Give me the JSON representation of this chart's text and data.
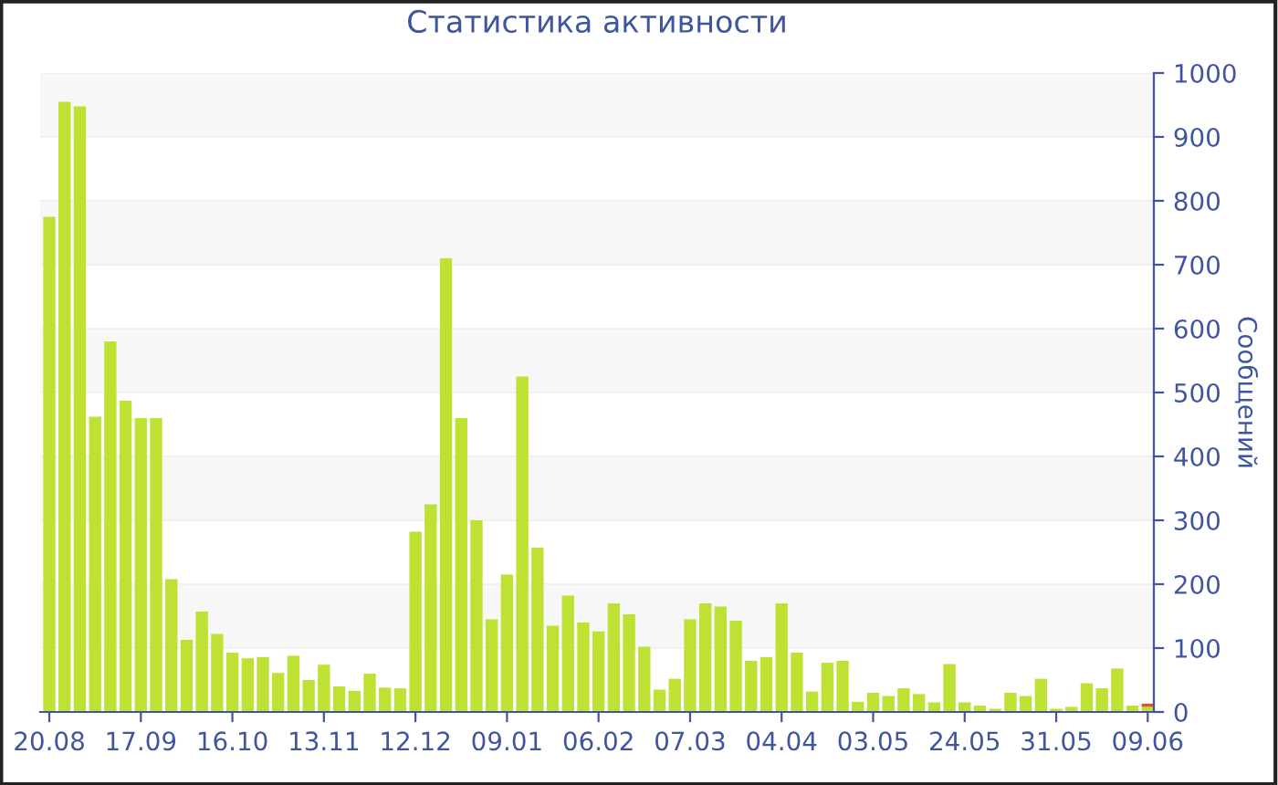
{
  "chart_data": {
    "type": "bar",
    "title": "Статистика активности",
    "ylabel": "Сообщений",
    "categories": [
      "20.08",
      null,
      null,
      null,
      null,
      null,
      "17.09",
      null,
      null,
      null,
      null,
      null,
      "16.10",
      null,
      null,
      null,
      null,
      null,
      "13.11",
      null,
      null,
      null,
      null,
      null,
      "12.12",
      null,
      null,
      null,
      null,
      null,
      "09.01",
      null,
      null,
      null,
      null,
      null,
      "06.02",
      null,
      null,
      null,
      null,
      null,
      "07.03",
      null,
      null,
      null,
      null,
      null,
      "04.04",
      null,
      null,
      null,
      null,
      null,
      "03.05",
      null,
      null,
      null,
      null,
      null,
      "24.05",
      null,
      null,
      null,
      null,
      null,
      "31.05",
      null,
      null,
      null,
      null,
      null,
      "09.06"
    ],
    "stacked": true,
    "series": [
      {
        "color": "#bde233",
        "values": [
          775,
          955,
          948,
          462,
          580,
          487,
          460,
          460,
          208,
          113,
          157,
          122,
          93,
          84,
          86,
          61,
          88,
          50,
          74,
          40,
          33,
          60,
          38,
          37,
          282,
          325,
          710,
          460,
          300,
          145,
          215,
          525,
          257,
          135,
          182,
          140,
          126,
          170,
          153,
          102,
          35,
          52,
          145,
          170,
          165,
          143,
          80,
          86,
          170,
          93,
          32,
          77,
          80,
          16,
          30,
          25,
          37,
          28,
          15,
          75,
          15,
          10,
          5,
          30,
          25,
          52,
          5,
          8,
          45,
          37,
          68,
          10,
          8
        ]
      },
      {
        "color": "#e8502a",
        "values": [
          null,
          null,
          null,
          null,
          null,
          null,
          null,
          null,
          null,
          null,
          null,
          null,
          null,
          null,
          null,
          null,
          null,
          null,
          null,
          null,
          null,
          null,
          null,
          null,
          null,
          null,
          null,
          null,
          null,
          null,
          null,
          null,
          null,
          null,
          null,
          null,
          null,
          null,
          null,
          null,
          null,
          null,
          null,
          null,
          null,
          null,
          null,
          null,
          null,
          null,
          null,
          null,
          null,
          null,
          null,
          null,
          null,
          null,
          null,
          null,
          null,
          null,
          null,
          null,
          null,
          null,
          null,
          null,
          null,
          null,
          null,
          null,
          5
        ]
      }
    ],
    "ylim": [
      0,
      1000
    ],
    "yticks": [
      0,
      100,
      200,
      300,
      400,
      500,
      600,
      700,
      800,
      900,
      1000
    ],
    "grid": "y"
  }
}
